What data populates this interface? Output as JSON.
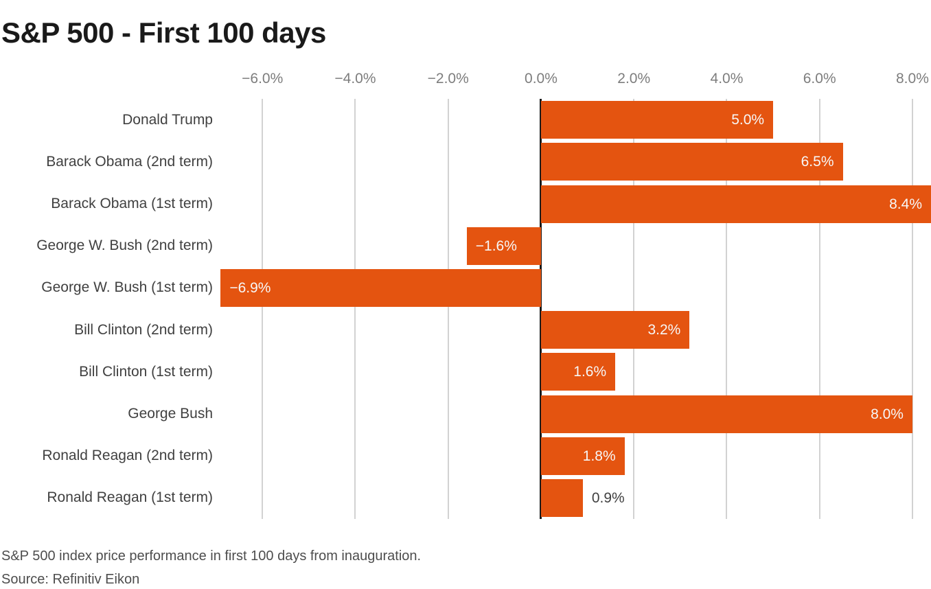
{
  "title": "S&P 500 - First 100 days",
  "footer": {
    "description": "S&P 500 index price performance in first 100 days from inauguration.",
    "source": "Source: Refinitiv Eikon"
  },
  "colors": {
    "bar": "#e45410",
    "title_text": "#1a1a1a",
    "axis_tick_text": "#7d7d7d",
    "category_text": "#404040",
    "value_label_inside": "#f7f7f7",
    "value_label_outside": "#404040",
    "gridline": "#d2d2d2",
    "zero_line": "#1a1a1a",
    "footer_text": "#4d4d4d",
    "background": "#ffffff"
  },
  "chart_data": {
    "type": "bar",
    "orientation": "horizontal",
    "title": "S&P 500 - First 100 days",
    "xlabel": "",
    "ylabel": "",
    "grid": true,
    "axis_position": "top",
    "xlim": [
      -6.92,
      8.4
    ],
    "x_ticks": [
      -6,
      -4,
      -2,
      0,
      2,
      4,
      6,
      8
    ],
    "x_tick_labels": [
      "−6.0%",
      "−4.0%",
      "−2.0%",
      "0.0%",
      "2.0%",
      "4.0%",
      "6.0%",
      "8.0%"
    ],
    "categories": [
      "Donald Trump",
      "Barack Obama (2nd term)",
      "Barack Obama (1st term)",
      "George W. Bush (2nd term)",
      "George W. Bush (1st term)",
      "Bill Clinton (2nd term)",
      "Bill Clinton (1st term)",
      "George Bush",
      "Ronald Reagan (2nd term)",
      "Ronald Reagan (1st term)"
    ],
    "values": [
      5.0,
      6.5,
      8.4,
      -1.6,
      -6.9,
      3.2,
      1.6,
      8.0,
      1.8,
      0.9
    ],
    "value_labels": [
      "5.0%",
      "6.5%",
      "8.4%",
      "−1.6%",
      "−6.9%",
      "3.2%",
      "1.6%",
      "8.0%",
      "1.8%",
      "0.9%"
    ]
  }
}
